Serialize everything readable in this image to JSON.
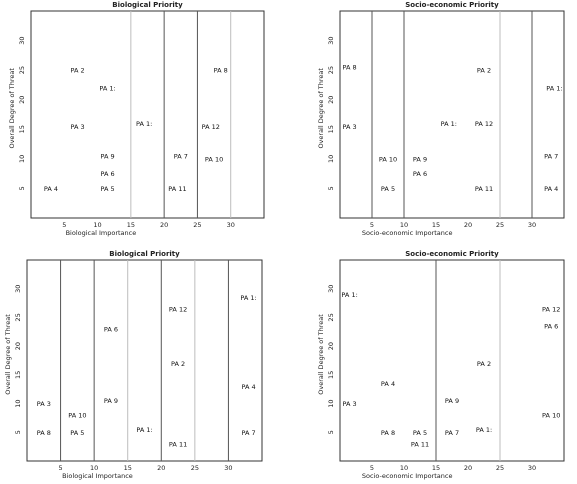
{
  "chart_data": [
    {
      "type": "scatter",
      "title": "Biological Priority",
      "xlabel": "Biological Importance",
      "ylabel": "Overall Degree of Threat",
      "xlim": [
        0,
        35
      ],
      "ylim": [
        0,
        35
      ],
      "xticks": [
        5,
        10,
        15,
        20,
        25,
        30
      ],
      "yticks": [
        5,
        10,
        15,
        20,
        25,
        30
      ],
      "vlines": [
        {
          "x": 15,
          "style": "light"
        },
        {
          "x": 20,
          "style": "dark"
        },
        {
          "x": 25,
          "style": "dark"
        },
        {
          "x": 30,
          "style": "light"
        }
      ],
      "points": [
        {
          "label": "PA 2",
          "x": 7,
          "y": 25
        },
        {
          "label": "PA 1:",
          "x": 11.5,
          "y": 22
        },
        {
          "label": "PA 8",
          "x": 28.5,
          "y": 25
        },
        {
          "label": "PA 3",
          "x": 7,
          "y": 15.5
        },
        {
          "label": "PA 1:",
          "x": 17,
          "y": 16
        },
        {
          "label": "PA 12",
          "x": 27,
          "y": 15.5
        },
        {
          "label": "PA 9",
          "x": 11.5,
          "y": 10.5
        },
        {
          "label": "PA 7",
          "x": 22.5,
          "y": 10.5
        },
        {
          "label": "PA 10",
          "x": 27.5,
          "y": 10
        },
        {
          "label": "PA 6",
          "x": 11.5,
          "y": 7.5
        },
        {
          "label": "PA 4",
          "x": 3,
          "y": 5
        },
        {
          "label": "PA 5",
          "x": 11.5,
          "y": 5
        },
        {
          "label": "PA 11",
          "x": 22,
          "y": 5
        }
      ]
    },
    {
      "type": "scatter",
      "title": "Socio-economic Priority",
      "xlabel": "Socio-economic Importance",
      "ylabel": "Overall Degree of Threat",
      "xlim": [
        0,
        35
      ],
      "ylim": [
        0,
        35
      ],
      "xticks": [
        5,
        10,
        15,
        20,
        25,
        30
      ],
      "yticks": [
        5,
        10,
        15,
        20,
        25,
        30
      ],
      "vlines": [
        {
          "x": 5,
          "style": "dark"
        },
        {
          "x": 10,
          "style": "dark"
        },
        {
          "x": 25,
          "style": "light"
        },
        {
          "x": 30,
          "style": "dark"
        }
      ],
      "points": [
        {
          "label": "PA 8",
          "x": 1.5,
          "y": 25.5
        },
        {
          "label": "PA 2",
          "x": 22.5,
          "y": 25
        },
        {
          "label": "PA 1:",
          "x": 33.5,
          "y": 22
        },
        {
          "label": "PA 3",
          "x": 1.5,
          "y": 15.5
        },
        {
          "label": "PA 1:",
          "x": 17,
          "y": 16
        },
        {
          "label": "PA 12",
          "x": 22.5,
          "y": 16
        },
        {
          "label": "PA 10",
          "x": 7.5,
          "y": 10
        },
        {
          "label": "PA 9",
          "x": 12.5,
          "y": 10
        },
        {
          "label": "PA 7",
          "x": 33,
          "y": 10.5
        },
        {
          "label": "PA 6",
          "x": 12.5,
          "y": 7.5
        },
        {
          "label": "PA 5",
          "x": 7.5,
          "y": 5
        },
        {
          "label": "PA 11",
          "x": 22.5,
          "y": 5
        },
        {
          "label": "PA 4",
          "x": 33,
          "y": 5
        }
      ]
    },
    {
      "type": "scatter",
      "title": "Biological Priority",
      "xlabel": "Biological Importance",
      "ylabel": "Overall Degree of Threat",
      "xlim": [
        0,
        35
      ],
      "ylim": [
        0,
        35
      ],
      "xticks": [
        5,
        10,
        15,
        20,
        25,
        30
      ],
      "yticks": [
        5,
        10,
        15,
        20,
        25,
        30
      ],
      "vlines": [
        {
          "x": 5,
          "style": "dark"
        },
        {
          "x": 10,
          "style": "dark"
        },
        {
          "x": 15,
          "style": "light"
        },
        {
          "x": 20,
          "style": "dark"
        },
        {
          "x": 25,
          "style": "light"
        },
        {
          "x": 30,
          "style": "dark"
        }
      ],
      "points": [
        {
          "label": "PA 1:",
          "x": 33,
          "y": 28.5
        },
        {
          "label": "PA 12",
          "x": 22.5,
          "y": 26.5
        },
        {
          "label": "PA 6",
          "x": 12.5,
          "y": 23
        },
        {
          "label": "PA 2",
          "x": 22.5,
          "y": 17
        },
        {
          "label": "PA 4",
          "x": 33,
          "y": 13
        },
        {
          "label": "PA 3",
          "x": 2.5,
          "y": 10
        },
        {
          "label": "PA 9",
          "x": 12.5,
          "y": 10.5
        },
        {
          "label": "PA 10",
          "x": 7.5,
          "y": 8
        },
        {
          "label": "PA 8",
          "x": 2.5,
          "y": 5
        },
        {
          "label": "PA 5",
          "x": 7.5,
          "y": 5
        },
        {
          "label": "PA 1:",
          "x": 17.5,
          "y": 5.5
        },
        {
          "label": "PA 7",
          "x": 33,
          "y": 5
        },
        {
          "label": "PA 11",
          "x": 22.5,
          "y": 3
        }
      ]
    },
    {
      "type": "scatter",
      "title": "Socio-economic Priority",
      "xlabel": "Socio-economic Importance",
      "ylabel": "Overall Degree of Threat",
      "xlim": [
        0,
        35
      ],
      "ylim": [
        0,
        35
      ],
      "xticks": [
        5,
        10,
        15,
        20,
        25,
        30
      ],
      "yticks": [
        5,
        10,
        15,
        20,
        25,
        30
      ],
      "vlines": [
        {
          "x": 15,
          "style": "dark"
        },
        {
          "x": 25,
          "style": "light"
        }
      ],
      "points": [
        {
          "label": "PA 1:",
          "x": 1.5,
          "y": 29
        },
        {
          "label": "PA 12",
          "x": 33,
          "y": 26.5
        },
        {
          "label": "PA 6",
          "x": 33,
          "y": 23.5
        },
        {
          "label": "PA 2",
          "x": 22.5,
          "y": 17
        },
        {
          "label": "PA 4",
          "x": 7.5,
          "y": 13.5
        },
        {
          "label": "PA 3",
          "x": 1.5,
          "y": 10
        },
        {
          "label": "PA 9",
          "x": 17.5,
          "y": 10.5
        },
        {
          "label": "PA 10",
          "x": 33,
          "y": 8
        },
        {
          "label": "PA 8",
          "x": 7.5,
          "y": 5
        },
        {
          "label": "PA 5",
          "x": 12.5,
          "y": 5
        },
        {
          "label": "PA 7",
          "x": 17.5,
          "y": 5
        },
        {
          "label": "PA 1:",
          "x": 22.5,
          "y": 5.5
        },
        {
          "label": "PA 11",
          "x": 12.5,
          "y": 3
        }
      ]
    }
  ],
  "colors": {
    "frame": "#333333",
    "line_dark": "#555555",
    "line_light": "#bdbdbd",
    "text": "#111111"
  }
}
